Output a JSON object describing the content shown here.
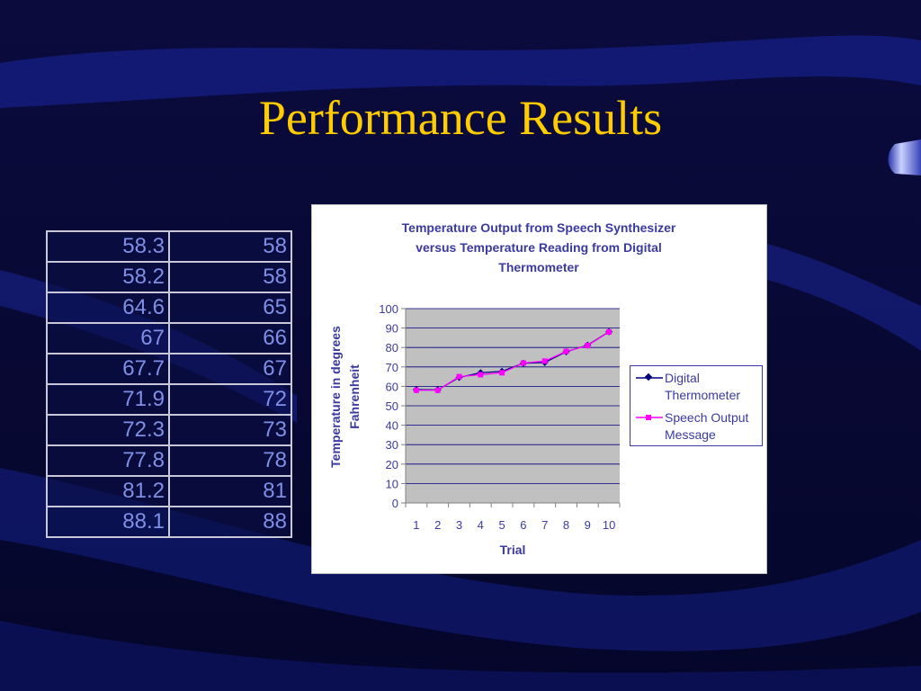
{
  "slide": {
    "title": "Performance Results"
  },
  "table": {
    "rows": [
      [
        "58.3",
        "58"
      ],
      [
        "58.2",
        "58"
      ],
      [
        "64.6",
        "65"
      ],
      [
        "67",
        "66"
      ],
      [
        "67.7",
        "67"
      ],
      [
        "71.9",
        "72"
      ],
      [
        "72.3",
        "73"
      ],
      [
        "77.8",
        "78"
      ],
      [
        "81.2",
        "81"
      ],
      [
        "88.1",
        "88"
      ]
    ]
  },
  "chart_data": {
    "type": "line",
    "title_lines": [
      "Temperature Output from Speech Synthesizer",
      "versus Temperature Reading from Digital",
      "Thermometer"
    ],
    "xlabel": "Trial",
    "ylabel_lines": [
      "Temperature in degrees",
      "Fahrenheit"
    ],
    "x": [
      1,
      2,
      3,
      4,
      5,
      6,
      7,
      8,
      9,
      10
    ],
    "ylim": [
      0,
      100
    ],
    "yticks": [
      0,
      10,
      20,
      30,
      40,
      50,
      60,
      70,
      80,
      90,
      100
    ],
    "grid": true,
    "legend_position": "right",
    "series": [
      {
        "name_lines": [
          "Digital",
          "Thermometer"
        ],
        "values": [
          58.3,
          58.2,
          64.6,
          67,
          67.7,
          71.9,
          72.3,
          77.8,
          81.2,
          88.1
        ],
        "color": "#000080",
        "marker": "diamond"
      },
      {
        "name_lines": [
          "Speech Output",
          "Message"
        ],
        "values": [
          58,
          58,
          65,
          66,
          67,
          72,
          73,
          78,
          81,
          88
        ],
        "color": "#ff00ff",
        "marker": "square"
      }
    ],
    "plot_background": "#c0c0c0",
    "gridline_color": "#000080"
  }
}
